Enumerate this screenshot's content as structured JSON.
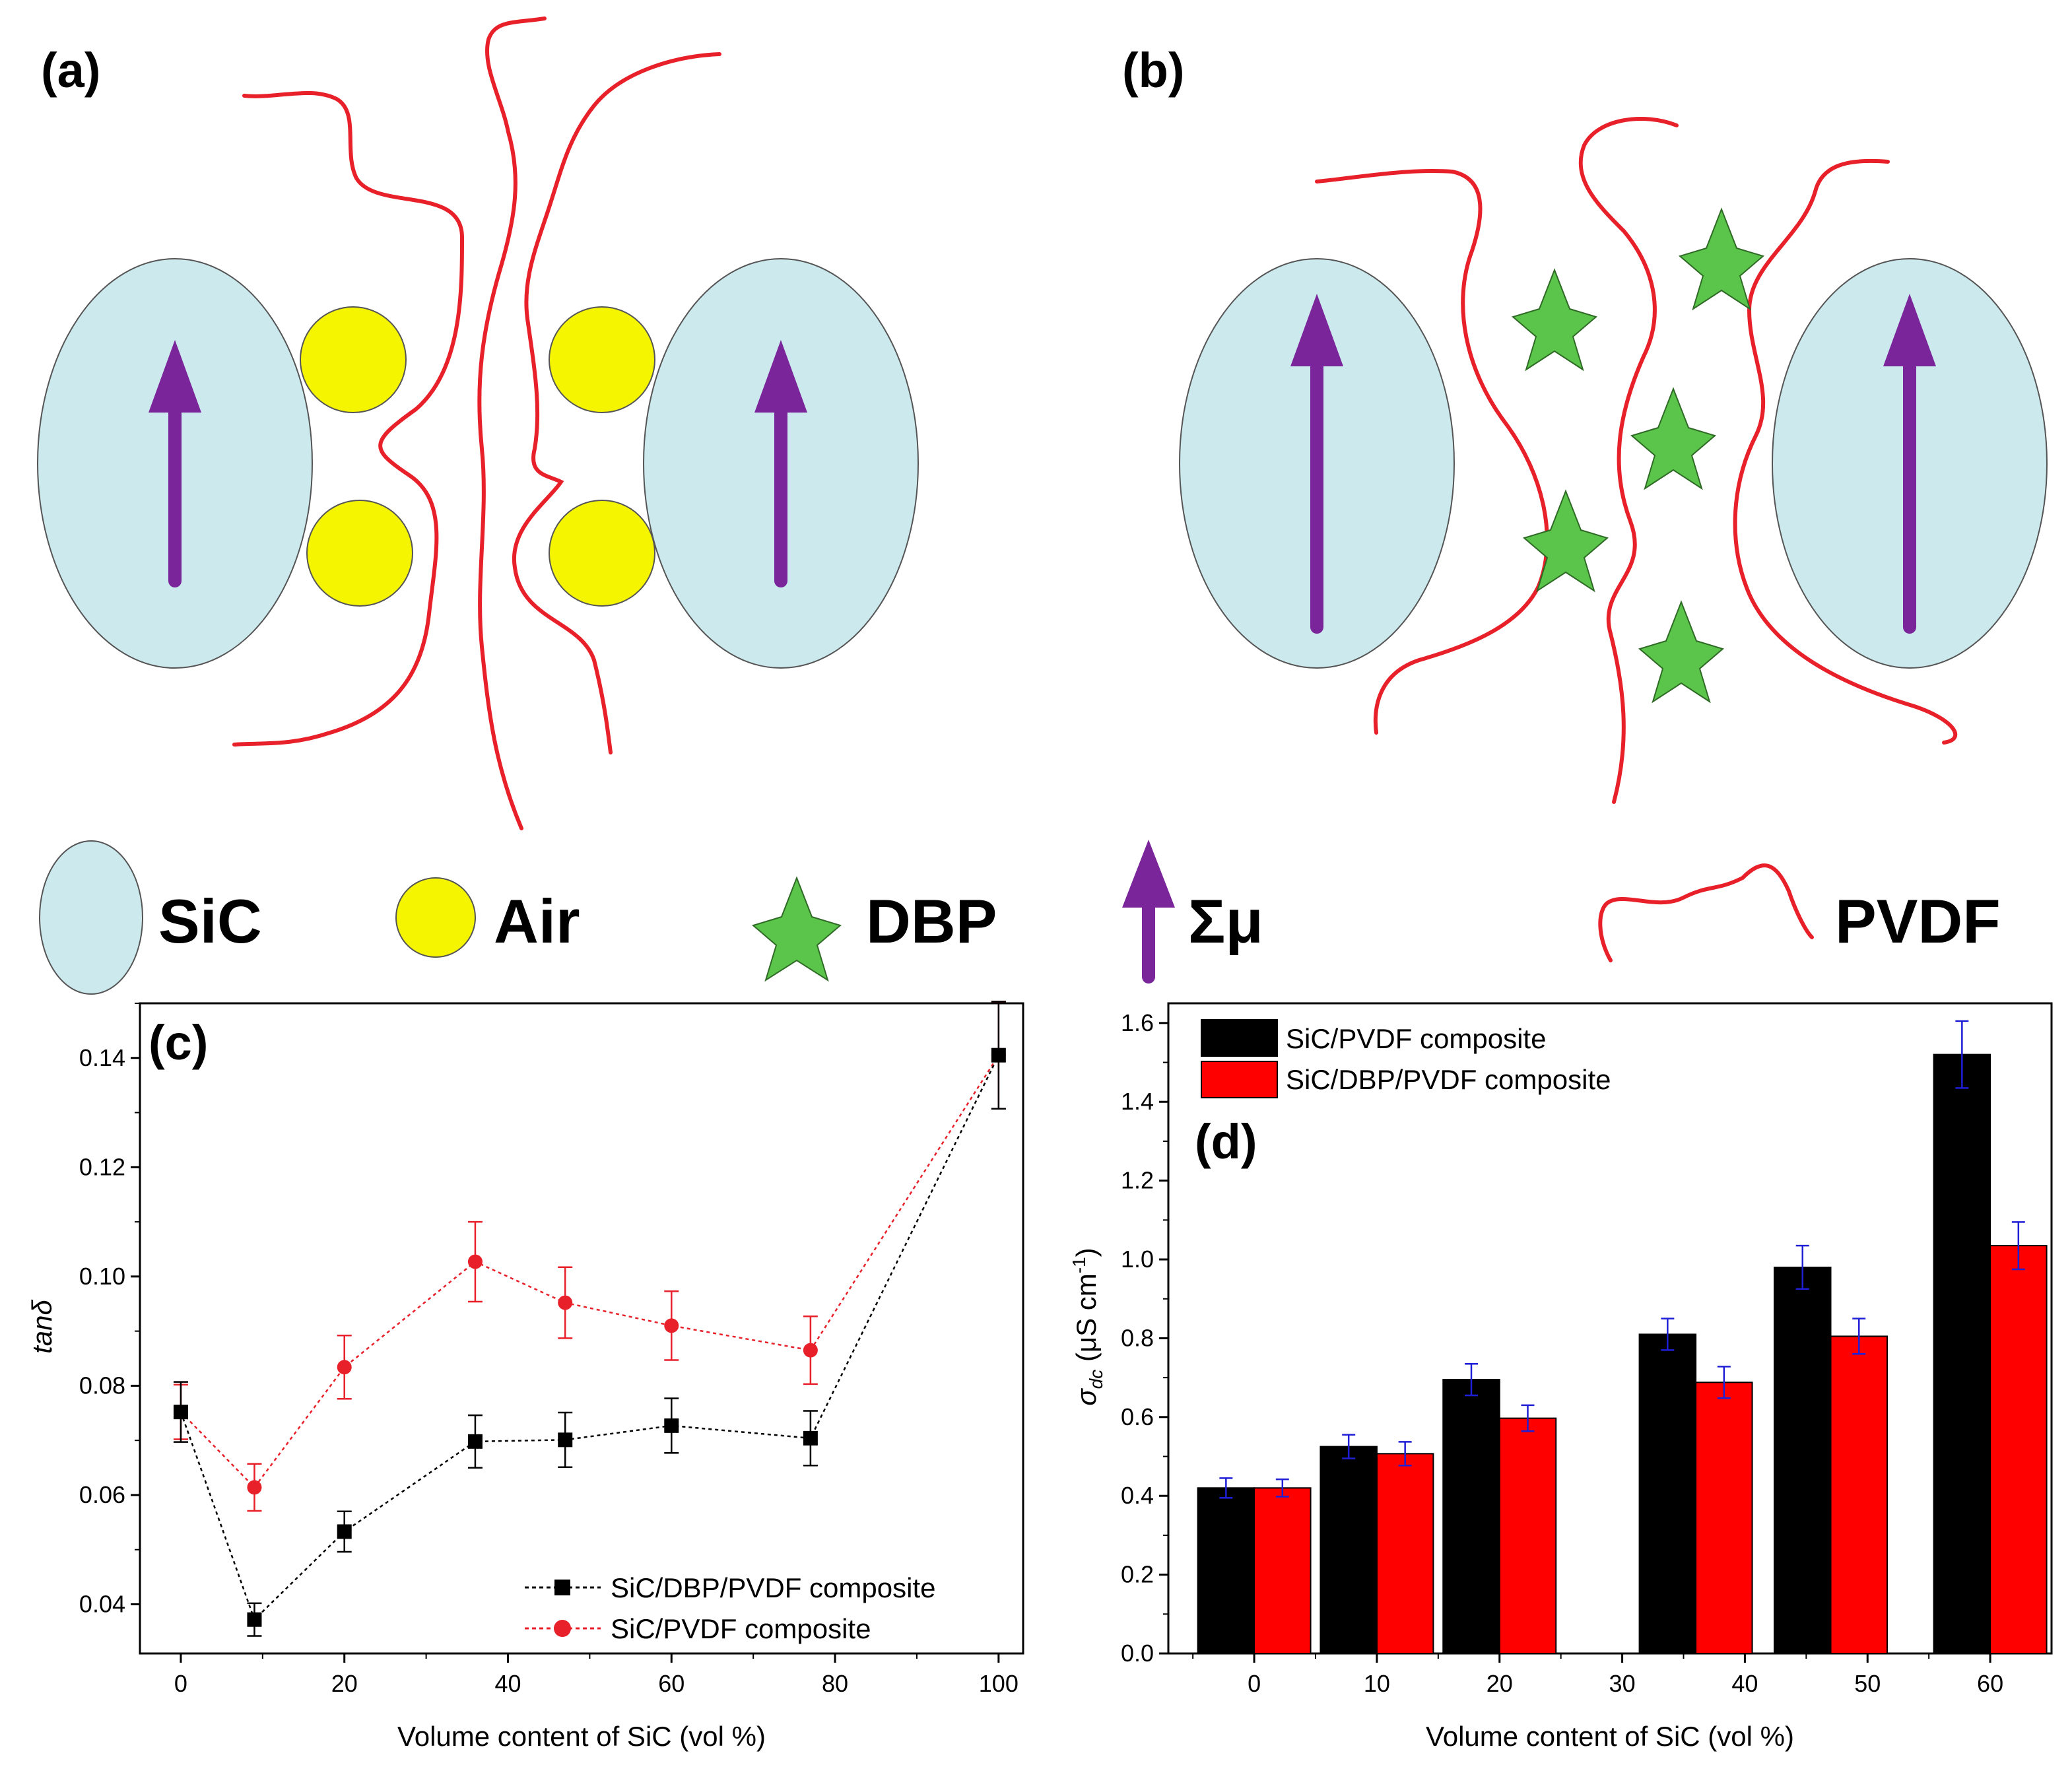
{
  "figure": {
    "panel_a_label": "(a)",
    "panel_b_label": "(b)",
    "panel_c_label": "(c)",
    "panel_d_label": "(d)",
    "legend": {
      "sic": "SiC",
      "air": "Air",
      "dbp": "DBP",
      "dipole": "Σμ",
      "pvdf": "PVDF"
    },
    "colors": {
      "sic_fill": "#cce9ee",
      "air_fill": "#f5f500",
      "dbp_fill": "#5bc44a",
      "arrow": "#7b259a",
      "pvdf_chain": "#e8202a"
    }
  },
  "chart_data": [
    {
      "panel": "c",
      "type": "line",
      "title": "",
      "xlabel": "Volume content of SiC  (vol %)",
      "ylabel": "tanδ",
      "xlim": [
        -5,
        103
      ],
      "ylim": [
        0.031,
        0.15
      ],
      "xticks": [
        0,
        20,
        40,
        60,
        80,
        100
      ],
      "yticks": [
        0.04,
        0.06,
        0.08,
        0.1,
        0.12,
        0.14
      ],
      "ytick_labels": [
        "0.04",
        "0.06",
        "0.08",
        "0.10",
        "0.12",
        "0.14"
      ],
      "legend_position": "bottom-right",
      "series": [
        {
          "name": "SiC/DBP/PVDF composite",
          "color": "#000000",
          "marker": "square",
          "x": [
            0,
            9,
            20,
            36,
            47,
            60,
            77,
            100
          ],
          "y": [
            0.0752,
            0.0372,
            0.0533,
            0.0698,
            0.0701,
            0.0727,
            0.0704,
            0.1405
          ],
          "err": [
            0.0055,
            0.003,
            0.0037,
            0.0048,
            0.005,
            0.005,
            0.005,
            0.0098
          ]
        },
        {
          "name": "SiC/PVDF composite",
          "color": "#e8202a",
          "marker": "circle",
          "x": [
            0,
            9,
            20,
            36,
            47,
            60,
            77,
            100
          ],
          "y": [
            0.0752,
            0.0614,
            0.0834,
            0.1027,
            0.0952,
            0.091,
            0.0865,
            0.1405
          ],
          "err": [
            0.005,
            0.0043,
            0.0058,
            0.0073,
            0.0065,
            0.0063,
            0.0062,
            0.0098
          ]
        }
      ]
    },
    {
      "panel": "d",
      "type": "bar",
      "title": "",
      "xlabel": "Volume content of SiC  (vol %)",
      "ylabel": "σdc (μS cm-1)",
      "xlim": [
        -7,
        65
      ],
      "ylim": [
        0,
        1.65
      ],
      "xticks": [
        0,
        10,
        20,
        30,
        40,
        50,
        60
      ],
      "yticks": [
        0.0,
        0.2,
        0.4,
        0.6,
        0.8,
        1.0,
        1.2,
        1.4,
        1.6
      ],
      "ytick_labels": [
        "0.0",
        "0.2",
        "0.4",
        "0.6",
        "0.8",
        "1.0",
        "1.2",
        "1.4",
        "1.6"
      ],
      "legend_position": "top-left",
      "errorbar_color": "#1f1fd6",
      "categories": [
        0,
        10,
        20,
        36,
        47,
        60
      ],
      "series": [
        {
          "name": "SiC/PVDF composite",
          "color": "#000000",
          "values": [
            0.42,
            0.525,
            0.695,
            0.81,
            0.98,
            1.52
          ],
          "err": [
            0.025,
            0.03,
            0.04,
            0.04,
            0.055,
            0.085
          ]
        },
        {
          "name": "SiC/DBP/PVDF composite",
          "color": "#ff0000",
          "values": [
            0.42,
            0.507,
            0.597,
            0.688,
            0.805,
            1.035
          ],
          "err": [
            0.022,
            0.03,
            0.033,
            0.04,
            0.045,
            0.06
          ]
        }
      ]
    }
  ]
}
